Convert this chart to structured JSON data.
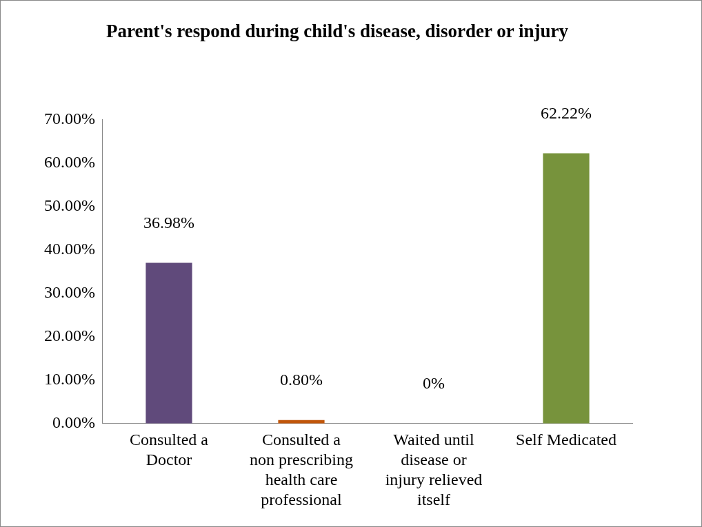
{
  "chart_data": {
    "type": "bar",
    "title": "Parent's respond during child's disease, disorder or injury",
    "categories": [
      "Consulted a Doctor",
      "Consulted a non prescribing health care professional",
      "Waited until disease or injury relieved itself",
      "Self Medicated"
    ],
    "values": [
      36.98,
      0.8,
      0,
      62.22
    ],
    "colors": [
      "#604a7b",
      "#c0560a",
      "#376092",
      "#77933c"
    ],
    "value_labels": [
      "36.98%",
      "0.80%",
      "0%",
      "62.22%"
    ],
    "ylim": [
      0,
      70
    ],
    "yticks": [
      {
        "value": 0,
        "label": "0.00%"
      },
      {
        "value": 10,
        "label": "10.00%"
      },
      {
        "value": 20,
        "label": "20.00%"
      },
      {
        "value": 30,
        "label": "30.00%"
      },
      {
        "value": 40,
        "label": "40.00%"
      },
      {
        "value": 50,
        "label": "50.00%"
      },
      {
        "value": 60,
        "label": "60.00%"
      },
      {
        "value": 70,
        "label": "70.00%"
      }
    ],
    "grid": false,
    "legend": false
  }
}
